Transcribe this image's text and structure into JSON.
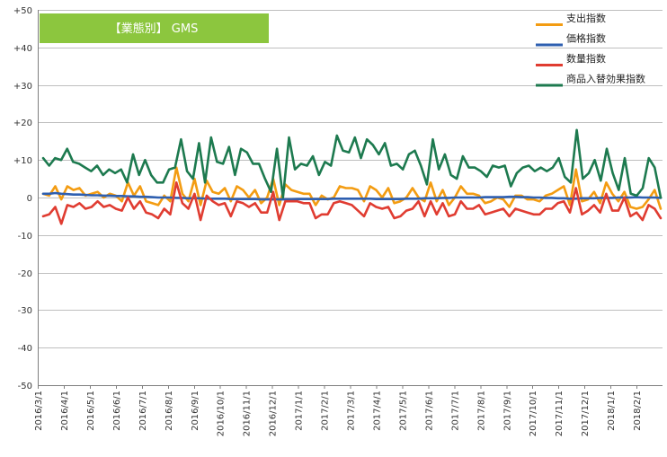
{
  "chart_data": {
    "type": "line",
    "title": "【業態別】 GMS",
    "title_bg": "#8cc63e",
    "ylim": [
      -50,
      50
    ],
    "y_ticks": [
      "+50",
      "+40",
      "+30",
      "+20",
      "+10",
      "0",
      "-10",
      "-20",
      "-30",
      "-40",
      "-50"
    ],
    "x_labels": [
      "2016/3/1",
      "2016/4/1",
      "2016/5/1",
      "2016/6/1",
      "2016/7/1",
      "2016/8/1",
      "2016/9/1",
      "2016/10/1",
      "2016/11/1",
      "2016/12/1",
      "2017/1/1",
      "2017/2/1",
      "2017/3/1",
      "2017/4/1",
      "2017/5/1",
      "2017/6/1",
      "2017/7/1",
      "2017/8/1",
      "2017/9/1",
      "2017/10/1",
      "2017/11/1",
      "2017/12/1",
      "2018/1/1",
      "2018/2/1"
    ],
    "grid": true,
    "legend_position": "top-right",
    "series": [
      {
        "name": "支出指数",
        "color": "#f39c12",
        "values": [
          1,
          0.5,
          3,
          -0.5,
          3,
          2,
          2.5,
          0.5,
          1,
          1.5,
          0,
          1,
          0.5,
          -1,
          4,
          0.5,
          3,
          -1,
          -1.5,
          -2,
          0.5,
          -1,
          8,
          1,
          -1,
          5,
          -2,
          4.5,
          1.5,
          1,
          2.5,
          -1,
          3,
          2,
          0,
          2,
          -1.5,
          0,
          5,
          -2,
          3.5,
          2,
          1.5,
          1,
          1,
          -2,
          0.5,
          -0.5,
          0,
          3,
          2.5,
          2.5,
          2,
          -1,
          3,
          2,
          0,
          2.5,
          -1.5,
          -1,
          0,
          2.5,
          0,
          -1,
          4,
          -1,
          2,
          -2,
          0,
          3,
          1,
          1,
          0.5,
          -1.5,
          -1,
          0,
          -0.5,
          -2.5,
          0.5,
          0.5,
          -0.5,
          -0.5,
          -1,
          0.5,
          1,
          2,
          3,
          -2,
          7.5,
          -1,
          -0.5,
          1.5,
          -1.5,
          4,
          1,
          -1,
          1.5,
          -2.5,
          -3,
          -2.5,
          -0.5,
          2,
          -3
        ]
      },
      {
        "name": "価格指数",
        "color": "#2e5fb0",
        "values": [
          1,
          1,
          1.2,
          1,
          0.9,
          0.8,
          0.8,
          0.7,
          0.6,
          0.6,
          0.5,
          0.5,
          0.4,
          0.4,
          0.3,
          0.3,
          0.2,
          0.2,
          0.1,
          0,
          0,
          0,
          -0.1,
          -0.1,
          -0.2,
          -0.2,
          -0.2,
          -0.3,
          -0.3,
          -0.3,
          -0.3,
          -0.4,
          -0.4,
          -0.4,
          -0.4,
          -0.4,
          -0.5,
          -0.5,
          -0.5,
          -0.5,
          -0.5,
          -0.5,
          -0.4,
          -0.4,
          -0.4,
          -0.4,
          -0.4,
          -0.4,
          -0.3,
          -0.3,
          -0.3,
          -0.3,
          -0.3,
          -0.3,
          -0.3,
          -0.4,
          -0.4,
          -0.4,
          -0.4,
          -0.4,
          -0.3,
          -0.3,
          -0.3,
          -0.2,
          -0.2,
          -0.2,
          -0.1,
          -0.1,
          0,
          0,
          0,
          0,
          0,
          0.1,
          0.1,
          0.1,
          0.1,
          0.2,
          0.2,
          0.1,
          0.1,
          0,
          0,
          -0.1,
          -0.1,
          -0.2,
          -0.2,
          -0.3,
          -0.3,
          -0.2,
          -0.2,
          -0.2,
          -0.1,
          -0.1,
          -0.1,
          0,
          0,
          0,
          0.1,
          0,
          0,
          0,
          -0.1
        ]
      },
      {
        "name": "数量指数",
        "color": "#e03c31",
        "values": [
          -5,
          -4.5,
          -2.5,
          -7,
          -2,
          -2.5,
          -1.5,
          -3,
          -2.5,
          -1,
          -2.5,
          -2,
          -3,
          -3.5,
          0,
          -3,
          -1,
          -4,
          -4.5,
          -5.5,
          -3,
          -4.5,
          4,
          -1.5,
          -3,
          1,
          -6,
          0.5,
          -1,
          -2,
          -1.5,
          -5,
          -1,
          -1.5,
          -2.5,
          -1.5,
          -4,
          -4,
          1.5,
          -6,
          -1,
          -1,
          -1,
          -1.5,
          -1.5,
          -5.5,
          -4.5,
          -4.5,
          -1.5,
          -1,
          -1.5,
          -2,
          -3.5,
          -5,
          -1.5,
          -2.5,
          -3,
          -2.5,
          -5.5,
          -5,
          -3.5,
          -3,
          -1,
          -5,
          -1,
          -4.5,
          -1.5,
          -5,
          -4.5,
          -1,
          -3,
          -3,
          -2,
          -4.5,
          -4,
          -3.5,
          -3,
          -5,
          -3,
          -3.5,
          -4,
          -4.5,
          -4.5,
          -3,
          -3,
          -1.5,
          -1,
          -4,
          2.5,
          -4.5,
          -3.5,
          -2,
          -4,
          1,
          -3.5,
          -3.5,
          0,
          -5,
          -4,
          -6,
          -2,
          -3,
          -5.5
        ]
      },
      {
        "name": "商品入替効果指数",
        "color": "#1d7a4f",
        "values": [
          10.5,
          8.5,
          10.5,
          10,
          13,
          9.5,
          9,
          8,
          7,
          8.5,
          6,
          7.5,
          6.5,
          7.5,
          4,
          11.5,
          6,
          10,
          6,
          4,
          4,
          7.5,
          8,
          15.5,
          7,
          5,
          14.5,
          4,
          16,
          9.5,
          9,
          13.5,
          6,
          13,
          12,
          9,
          9,
          5,
          1.5,
          13,
          0,
          16,
          7.5,
          9,
          8.5,
          11,
          6,
          9.5,
          8.5,
          16.5,
          12.5,
          12,
          16,
          10.5,
          15.5,
          14,
          11.5,
          14.5,
          8.5,
          9,
          7.5,
          11.5,
          12.5,
          8.5,
          3.5,
          15.5,
          7.5,
          11.5,
          6,
          5,
          11,
          8,
          8,
          7,
          5.5,
          8.5,
          8,
          8.5,
          3,
          6.5,
          8,
          8.5,
          7,
          8,
          7,
          8,
          10.5,
          5.5,
          4,
          18,
          5,
          6.5,
          10,
          4.5,
          13,
          6.5,
          2,
          10.5,
          1,
          0.5,
          2.5,
          10.5,
          8,
          0
        ]
      }
    ]
  }
}
